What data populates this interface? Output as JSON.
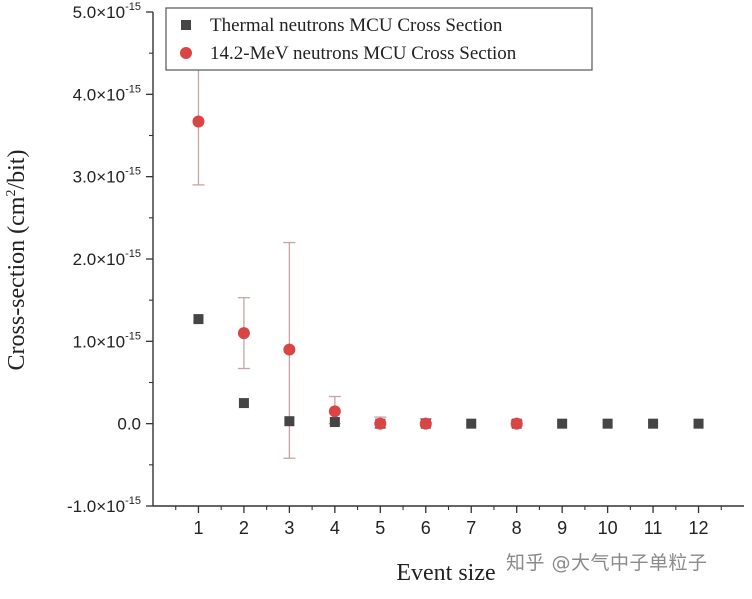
{
  "chart_data": {
    "type": "scatter",
    "xlabel": "Event size",
    "ylabel_base": "Cross-section (cm",
    "ylabel_sup": "2",
    "ylabel_tail": "/bit)",
    "x_ticks": [
      1,
      2,
      3,
      4,
      5,
      6,
      7,
      8,
      9,
      10,
      11,
      12
    ],
    "xlim": [
      0,
      13
    ],
    "ylim": [
      -1e-15,
      5e-15
    ],
    "y_ticks": [
      {
        "value": -1e-15,
        "mantissa": "-1.0",
        "has_exp": true
      },
      {
        "value": 0.0,
        "mantissa": "0.0",
        "has_exp": false
      },
      {
        "value": 1e-15,
        "mantissa": "1.0",
        "has_exp": true
      },
      {
        "value": 2e-15,
        "mantissa": "2.0",
        "has_exp": true
      },
      {
        "value": 3e-15,
        "mantissa": "3.0",
        "has_exp": true
      },
      {
        "value": 4e-15,
        "mantissa": "4.0",
        "has_exp": true
      },
      {
        "value": 5e-15,
        "mantissa": "5.0",
        "has_exp": true
      }
    ],
    "y_tick_exp_base": "×10",
    "y_tick_exp": "-15",
    "legend_position": "top-right",
    "series": [
      {
        "name": "Thermal neutrons MCU Cross Section",
        "marker": "square",
        "color": "#454545",
        "points": [
          {
            "x": 1,
            "y": 1.27e-15
          },
          {
            "x": 2,
            "y": 2.5e-16
          },
          {
            "x": 3,
            "y": 3e-17
          },
          {
            "x": 4,
            "y": 2e-17
          },
          {
            "x": 5,
            "y": 0.0
          },
          {
            "x": 6,
            "y": 0.0
          },
          {
            "x": 7,
            "y": 0.0
          },
          {
            "x": 8,
            "y": 0.0
          },
          {
            "x": 9,
            "y": 0.0
          },
          {
            "x": 10,
            "y": 0.0
          },
          {
            "x": 11,
            "y": 0.0
          },
          {
            "x": 12,
            "y": 0.0
          }
        ]
      },
      {
        "name": "14.2-MeV neutrons MCU Cross Section",
        "marker": "circle",
        "color": "#d94545",
        "error_color": "#c9a3a3",
        "points": [
          {
            "x": 1,
            "y": 3.67e-15,
            "err_low": 2.9e-15,
            "err_high": 4.44e-15
          },
          {
            "x": 2,
            "y": 1.1e-15,
            "err_low": 6.7e-16,
            "err_high": 1.53e-15
          },
          {
            "x": 3,
            "y": 9e-16,
            "err_low": -4.2e-16,
            "err_high": 2.2e-15
          },
          {
            "x": 4,
            "y": 1.5e-16,
            "err_low": 0.0,
            "err_high": 3.3e-16
          },
          {
            "x": 5,
            "y": 0.0,
            "err_low": -5e-17,
            "err_high": 8e-17
          },
          {
            "x": 6,
            "y": 0.0,
            "err_low": -3e-17,
            "err_high": 6e-17
          },
          {
            "x": 8,
            "y": 0.0,
            "err_low": -3e-17,
            "err_high": 4e-17
          }
        ]
      }
    ]
  },
  "watermark": "知乎 @大气中子单粒子"
}
